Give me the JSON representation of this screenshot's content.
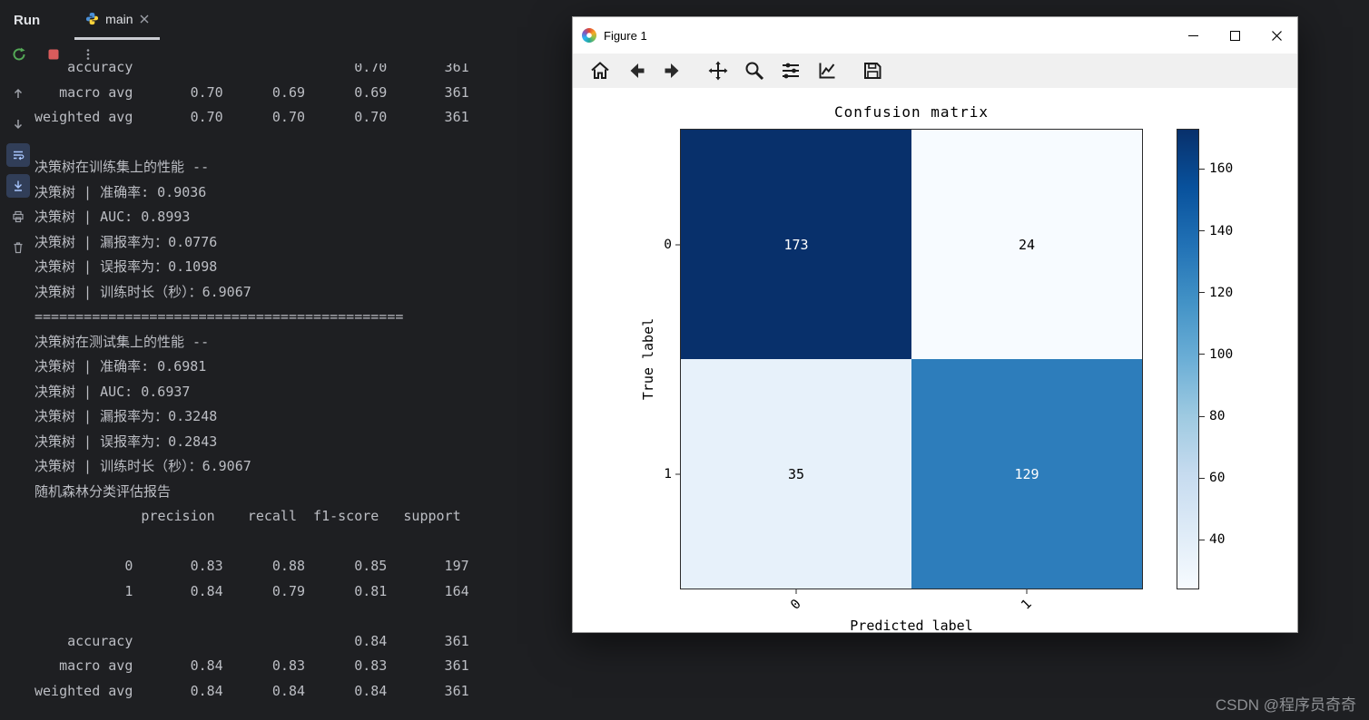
{
  "ide": {
    "run_label": "Run",
    "tab": {
      "label": "main"
    },
    "console_lines": [
      "    accuracy                           0.70       361",
      "   macro avg       0.70      0.69      0.69       361",
      "weighted avg       0.70      0.70      0.70       361",
      "",
      "决策树在训练集上的性能 --",
      "决策树 | 准确率: 0.9036",
      "决策树 | AUC: 0.8993",
      "决策树 | 漏报率为：0.0776",
      "决策树 | 误报率为：0.1098",
      "决策树 | 训练时长（秒）：6.9067",
      "=============================================",
      "决策树在测试集上的性能 --",
      "决策树 | 准确率: 0.6981",
      "决策树 | AUC: 0.6937",
      "决策树 | 漏报率为：0.3248",
      "决策树 | 误报率为：0.2843",
      "决策树 | 训练时长（秒）：6.9067",
      "随机森林分类评估报告",
      "             precision    recall  f1-score   support",
      "",
      "           0       0.83      0.88      0.85       197",
      "           1       0.84      0.79      0.81       164",
      "",
      "    accuracy                           0.84       361",
      "   macro avg       0.84      0.83      0.83       361",
      "weighted avg       0.84      0.84      0.84       361"
    ],
    "watermark": "CSDN @程序员奇奇"
  },
  "figure_window": {
    "title": "Figure 1",
    "toolbar_icons": [
      "home",
      "back",
      "forward",
      "pan",
      "zoom",
      "configure-subplots",
      "edit-axes",
      "save"
    ]
  },
  "chart_data": {
    "type": "heatmap",
    "title": "Confusion matrix",
    "xlabel": "Predicted label",
    "ylabel": "True label",
    "x_ticks": [
      "0",
      "1"
    ],
    "y_ticks": [
      "0",
      "1"
    ],
    "matrix": [
      [
        173,
        24
      ],
      [
        35,
        129
      ]
    ],
    "cell_colors": [
      [
        "#08306b",
        "#f7fbff"
      ],
      [
        "#e7f1fa",
        "#2d7dbb"
      ]
    ],
    "cell_text_colors": [
      [
        "#ffffff",
        "#000000"
      ],
      [
        "#000000",
        "#ffffff"
      ]
    ],
    "colormap": "Blues",
    "colorbar": {
      "vmin": 24,
      "vmax": 173,
      "ticks": [
        160,
        140,
        120,
        100,
        80,
        60,
        40
      ]
    },
    "colors": {
      "accent_dark": "#08306b",
      "accent_mid": "#2d7dbb"
    }
  }
}
